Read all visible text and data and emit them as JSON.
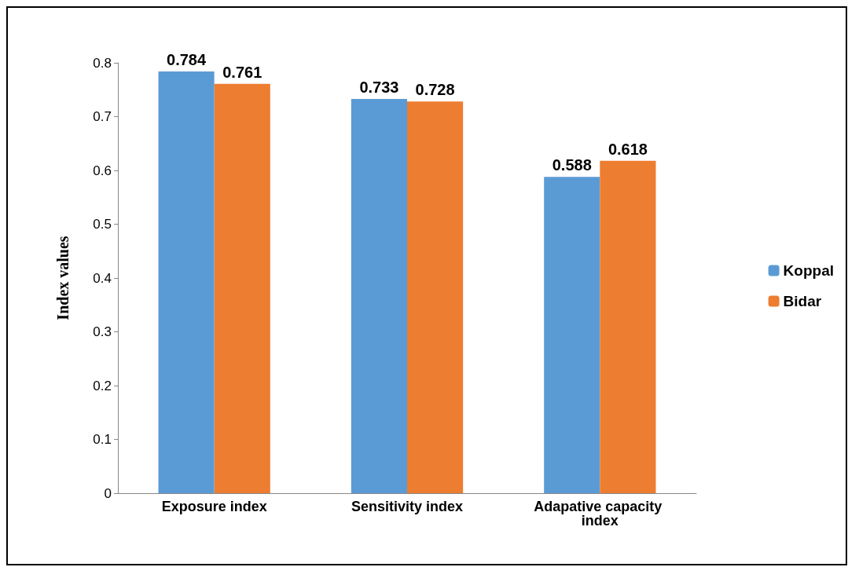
{
  "chart_data": {
    "type": "bar",
    "categories": [
      "Exposure index",
      "Sensitivity index",
      "Adapative capacity index"
    ],
    "series": [
      {
        "name": "Koppal",
        "color": "#5b9bd5",
        "values": [
          0.784,
          0.733,
          0.588
        ]
      },
      {
        "name": "Bidar",
        "color": "#ed7d31",
        "values": [
          0.761,
          0.728,
          0.618
        ]
      }
    ],
    "ylabel": "Index values",
    "ylim": [
      0,
      0.8
    ],
    "yticks": [
      0,
      0.1,
      0.2,
      0.3,
      0.4,
      0.5,
      0.6,
      0.7,
      0.8
    ],
    "grid": false,
    "legend": "right",
    "data_labels": true
  }
}
